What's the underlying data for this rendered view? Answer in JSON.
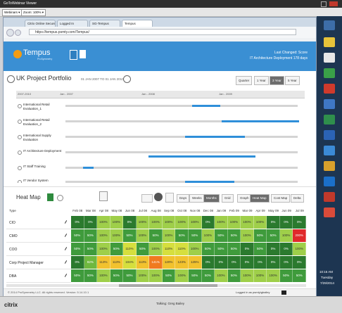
{
  "viewer": {
    "title": "GoToWebinar Viewer",
    "webinars": "Webinars ▾",
    "zoom": "Zoom: 100% ▾"
  },
  "browser": {
    "tabs": [
      "Citrix Online Secure Login",
      "Logged In",
      "SG-Tempus",
      "Tempus"
    ],
    "active_tab": 3,
    "url": "https://tempus.psmty.com/Tempus/"
  },
  "app": {
    "logo": "Tempus",
    "logo_sub": "ProSymmetry",
    "last_changed": "Last Changed: Score",
    "last_item": "IT Architecture Deployment 178 days"
  },
  "portfolio": {
    "title": "UK Project Portfolio",
    "range": "01 JAN 2007 TO 01 JAN 2010",
    "ranges": [
      "Quarter",
      "1 Year",
      "3 Year",
      "5 Year"
    ],
    "active_range": 2,
    "timeline": [
      "2007-2010",
      "Jan - 2007",
      "Jan - 2008",
      "Jan - 2009"
    ],
    "projects": [
      "International Retail Evaluation_1",
      "International Retail Evaluation_2",
      "International Supply Evaluation",
      "IT Architecture Deployment",
      "IT Staff Training",
      "IT Vendor System"
    ]
  },
  "heatmap": {
    "title": "Heat Map",
    "views": [
      "Days",
      "Weeks",
      "Months"
    ],
    "active_view": 2,
    "modes": [
      "Grid",
      "Graph",
      "Heat Map",
      "Cost Map",
      "Delta"
    ],
    "active_mode": 2,
    "type_header": "Type",
    "months": [
      "Feb 08",
      "Mar 08",
      "Apr 08",
      "May 08",
      "Jun 08",
      "Jul 08",
      "Aug 08",
      "Sep 08",
      "Oct 08",
      "Nov 08",
      "Dec 08",
      "Jan 09",
      "Feb 09",
      "Mar 09",
      "Apr 09",
      "May 09",
      "Jun 09",
      "Jul 09"
    ],
    "rows": [
      {
        "type": "CIO",
        "cells": [
          "0%",
          "0%",
          "100%",
          "100%",
          "0%",
          "100%",
          "100%",
          "100%",
          "100%",
          "100%",
          "0%",
          "100%",
          "100%",
          "100%",
          "100%",
          "0%",
          "0%",
          "0%"
        ]
      },
      {
        "type": "CMO",
        "cells": [
          "50%",
          "50%",
          "100%",
          "100%",
          "50%",
          "100%",
          "50%",
          "100%",
          "50%",
          "50%",
          "100%",
          "50%",
          "50%",
          "100%",
          "50%",
          "50%",
          "100%",
          "200%"
        ]
      },
      {
        "type": "COO",
        "cells": [
          "50%",
          "50%",
          "100%",
          "50%",
          "110%",
          "50%",
          "100%",
          "110%",
          "110%",
          "100%",
          "50%",
          "50%",
          "50%",
          "0%",
          "50%",
          "0%",
          "0%",
          "100%"
        ]
      },
      {
        "type": "Corp Project Manager",
        "cells": [
          "0%",
          "82%",
          "113%",
          "113%",
          "104%",
          "113%",
          "141%",
          "120%",
          "123%",
          "125%",
          "0%",
          "0%",
          "0%",
          "0%",
          "0%",
          "0%",
          "0%",
          "0%"
        ]
      },
      {
        "type": "DBA",
        "cells": [
          "50%",
          "50%",
          "100%",
          "50%",
          "50%",
          "100%",
          "100%",
          "50%",
          "100%",
          "50%",
          "50%",
          "100%",
          "50%",
          "100%",
          "100%",
          "100%",
          "50%",
          "50%"
        ]
      }
    ]
  },
  "footer": {
    "copyright": "© 2014 ProSymmetry LLC. All rights reserved. Version: 5.14.10.1",
    "login": "Logged in as psmty\\gbailey"
  },
  "bottom": {
    "brand": "citrix",
    "talking": "Talking: Greg Bailey"
  },
  "clock": {
    "time": "10:16 AM",
    "day": "Tuesday",
    "date": "7/29/2014"
  }
}
